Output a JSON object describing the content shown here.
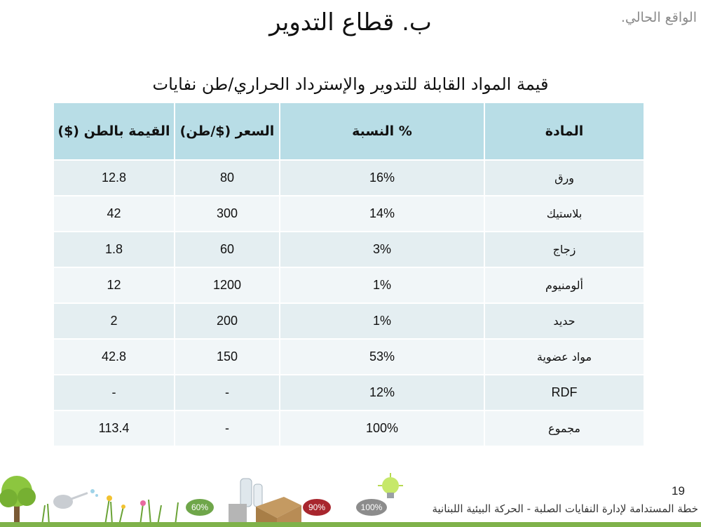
{
  "header": {
    "corner_label": "الواقع الحالي.",
    "title": "ب. قطاع التدوير"
  },
  "table": {
    "caption": "قيمة المواد القابلة للتدوير والإسترداد الحراري/طن نفايات",
    "headers": {
      "material": "المادة",
      "percent": "% النسبة",
      "price": "السعر ($/طن)",
      "value": "القيمة بالطن ($)"
    },
    "rows": [
      {
        "material": "ورق",
        "percent": "16%",
        "price": "80",
        "value": "12.8"
      },
      {
        "material": "بلاستيك",
        "percent": "14%",
        "price": "300",
        "value": "42"
      },
      {
        "material": "زجاج",
        "percent": "3%",
        "price": "60",
        "value": "1.8"
      },
      {
        "material": "ألومنيوم",
        "percent": "1%",
        "price": "1200",
        "value": "12"
      },
      {
        "material": "حديد",
        "percent": "1%",
        "price": "200",
        "value": "2"
      },
      {
        "material": "مواد عضوية",
        "percent": "53%",
        "price": "150",
        "value": "42.8"
      },
      {
        "material": "RDF",
        "percent": "12%",
        "price": "-",
        "value": "-"
      },
      {
        "material": "مجموع",
        "percent": "100%",
        "price": "-",
        "value": "113.4"
      }
    ]
  },
  "footer": {
    "page_number": "19",
    "text": "خطة المستدامة لإدارة النفايات الصلبة  -  الحركة البيئية اللبنانية",
    "badges": [
      "60%",
      "90%",
      "100%"
    ],
    "colors": {
      "bar": "#7fb24a",
      "badge_green": "#6fa64a",
      "badge_red": "#a8262e",
      "badge_gray": "#8c8c8c"
    }
  }
}
